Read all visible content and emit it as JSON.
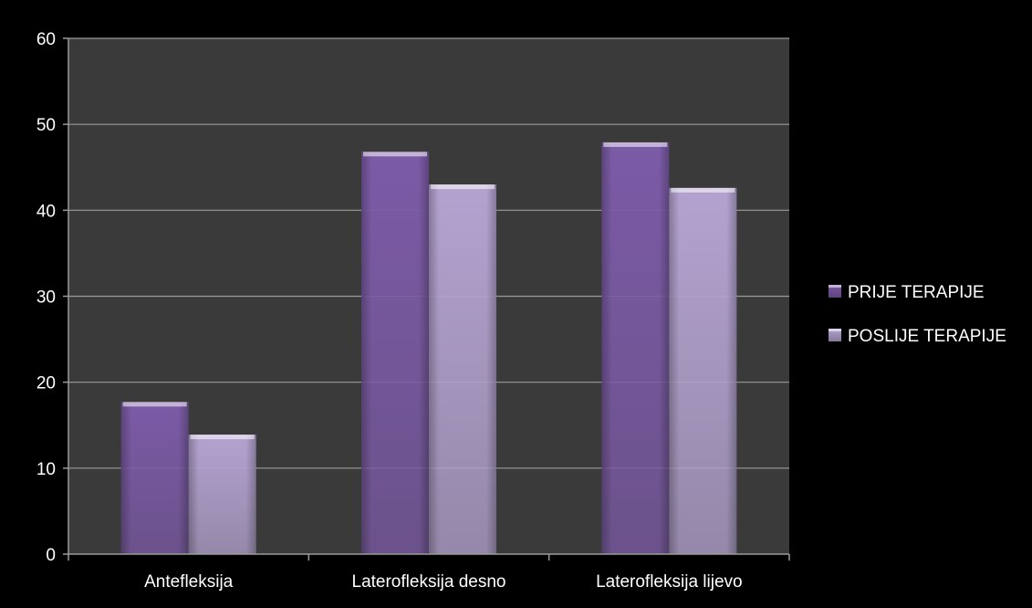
{
  "chart_data": {
    "type": "bar",
    "title": "",
    "xlabel": "",
    "ylabel": "",
    "categories": [
      "Antefleksija",
      "Laterofleksija desno",
      "Laterofleksija lijevo"
    ],
    "series": [
      {
        "name": "PRIJE TERAPIJE",
        "values": [
          17.7,
          46.8,
          47.9
        ],
        "color": "#7b5aa6"
      },
      {
        "name": "POSLIJE TERAPIJE",
        "values": [
          13.9,
          43.0,
          42.6
        ],
        "color": "#b3a2cf"
      }
    ],
    "ylim": [
      0,
      60
    ],
    "yticks": [
      0,
      10,
      20,
      30,
      40,
      50,
      60
    ],
    "grid": true,
    "legend_position": "right",
    "colors": {
      "background": "#000000",
      "plot_area": "#3a3a3a",
      "gridline": "#9a9a9a",
      "text": "#ffffff"
    }
  }
}
